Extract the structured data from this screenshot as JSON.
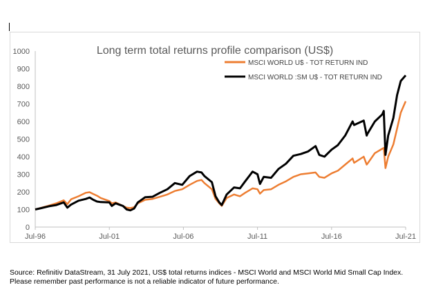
{
  "chart_data": {
    "type": "line",
    "title": "Long term total returns profile comparison (US$)",
    "xlabel": "",
    "ylabel": "",
    "ylim": [
      0,
      1000
    ],
    "yticks": [
      0,
      100,
      200,
      300,
      400,
      500,
      600,
      700,
      800,
      900,
      1000
    ],
    "xlim": [
      1996.58,
      2021.58
    ],
    "xticks": [
      {
        "x": 1996.58,
        "label": "Jul-96"
      },
      {
        "x": 2001.58,
        "label": "Jul-01"
      },
      {
        "x": 2006.58,
        "label": "Jul-06"
      },
      {
        "x": 2011.58,
        "label": "Jul-11"
      },
      {
        "x": 2016.58,
        "label": "Jul-16"
      },
      {
        "x": 2021.58,
        "label": "Jul-21"
      }
    ],
    "grid": false,
    "legend_position": "top-right",
    "series": [
      {
        "name": "MSCI WORLD U$ - TOT RETURN IND",
        "color": "#ed7d31",
        "points": [
          [
            1996.58,
            100
          ],
          [
            1997.0,
            110
          ],
          [
            1997.5,
            122
          ],
          [
            1998.0,
            135
          ],
          [
            1998.5,
            152
          ],
          [
            1998.75,
            130
          ],
          [
            1999.0,
            158
          ],
          [
            1999.5,
            175
          ],
          [
            2000.0,
            195
          ],
          [
            2000.25,
            198
          ],
          [
            2000.5,
            188
          ],
          [
            2000.75,
            178
          ],
          [
            2001.0,
            165
          ],
          [
            2001.58,
            148
          ],
          [
            2001.75,
            135
          ],
          [
            2002.0,
            140
          ],
          [
            2002.5,
            120
          ],
          [
            2002.75,
            110
          ],
          [
            2003.0,
            108
          ],
          [
            2003.25,
            112
          ],
          [
            2003.5,
            135
          ],
          [
            2004.0,
            155
          ],
          [
            2004.5,
            160
          ],
          [
            2005.0,
            172
          ],
          [
            2005.5,
            185
          ],
          [
            2006.0,
            205
          ],
          [
            2006.5,
            215
          ],
          [
            2007.0,
            240
          ],
          [
            2007.5,
            262
          ],
          [
            2007.8,
            268
          ],
          [
            2008.0,
            250
          ],
          [
            2008.5,
            215
          ],
          [
            2008.75,
            160
          ],
          [
            2009.0,
            135
          ],
          [
            2009.17,
            120
          ],
          [
            2009.5,
            165
          ],
          [
            2010.0,
            185
          ],
          [
            2010.4,
            175
          ],
          [
            2010.75,
            195
          ],
          [
            2011.25,
            220
          ],
          [
            2011.58,
            215
          ],
          [
            2011.75,
            190
          ],
          [
            2012.0,
            210
          ],
          [
            2012.5,
            215
          ],
          [
            2013.0,
            240
          ],
          [
            2013.5,
            260
          ],
          [
            2014.0,
            285
          ],
          [
            2014.5,
            300
          ],
          [
            2015.0,
            305
          ],
          [
            2015.5,
            310
          ],
          [
            2015.75,
            285
          ],
          [
            2016.1,
            280
          ],
          [
            2016.58,
            305
          ],
          [
            2017.0,
            320
          ],
          [
            2017.5,
            355
          ],
          [
            2018.0,
            390
          ],
          [
            2018.1,
            365
          ],
          [
            2018.75,
            400
          ],
          [
            2018.95,
            355
          ],
          [
            2019.0,
            360
          ],
          [
            2019.5,
            420
          ],
          [
            2020.0,
            445
          ],
          [
            2020.1,
            450
          ],
          [
            2020.22,
            335
          ],
          [
            2020.4,
            400
          ],
          [
            2020.75,
            470
          ],
          [
            2021.0,
            560
          ],
          [
            2021.25,
            650
          ],
          [
            2021.58,
            715
          ]
        ]
      },
      {
        "name": "MSCI WORLD :SM U$ - TOT RETURN IND",
        "color": "#000000",
        "points": [
          [
            1996.58,
            100
          ],
          [
            1997.0,
            108
          ],
          [
            1997.5,
            118
          ],
          [
            1998.0,
            125
          ],
          [
            1998.5,
            140
          ],
          [
            1998.75,
            110
          ],
          [
            1999.0,
            128
          ],
          [
            1999.5,
            150
          ],
          [
            2000.0,
            160
          ],
          [
            2000.25,
            168
          ],
          [
            2000.5,
            155
          ],
          [
            2000.75,
            145
          ],
          [
            2001.0,
            142
          ],
          [
            2001.58,
            140
          ],
          [
            2001.75,
            120
          ],
          [
            2002.0,
            135
          ],
          [
            2002.5,
            120
          ],
          [
            2002.75,
            100
          ],
          [
            2003.0,
            95
          ],
          [
            2003.25,
            105
          ],
          [
            2003.5,
            140
          ],
          [
            2004.0,
            170
          ],
          [
            2004.5,
            172
          ],
          [
            2005.0,
            195
          ],
          [
            2005.5,
            215
          ],
          [
            2006.0,
            250
          ],
          [
            2006.5,
            240
          ],
          [
            2007.0,
            290
          ],
          [
            2007.5,
            315
          ],
          [
            2007.8,
            310
          ],
          [
            2008.0,
            290
          ],
          [
            2008.5,
            255
          ],
          [
            2008.75,
            175
          ],
          [
            2009.0,
            140
          ],
          [
            2009.17,
            125
          ],
          [
            2009.5,
            185
          ],
          [
            2010.0,
            225
          ],
          [
            2010.4,
            220
          ],
          [
            2010.75,
            260
          ],
          [
            2011.25,
            315
          ],
          [
            2011.58,
            300
          ],
          [
            2011.75,
            245
          ],
          [
            2012.0,
            285
          ],
          [
            2012.5,
            280
          ],
          [
            2013.0,
            330
          ],
          [
            2013.5,
            360
          ],
          [
            2014.0,
            405
          ],
          [
            2014.5,
            415
          ],
          [
            2015.0,
            430
          ],
          [
            2015.5,
            460
          ],
          [
            2015.75,
            410
          ],
          [
            2016.1,
            400
          ],
          [
            2016.58,
            440
          ],
          [
            2017.0,
            465
          ],
          [
            2017.5,
            520
          ],
          [
            2018.0,
            600
          ],
          [
            2018.1,
            580
          ],
          [
            2018.75,
            605
          ],
          [
            2018.95,
            520
          ],
          [
            2019.0,
            530
          ],
          [
            2019.5,
            600
          ],
          [
            2020.0,
            640
          ],
          [
            2020.1,
            660
          ],
          [
            2020.22,
            410
          ],
          [
            2020.4,
            520
          ],
          [
            2020.75,
            620
          ],
          [
            2021.0,
            750
          ],
          [
            2021.25,
            830
          ],
          [
            2021.58,
            862
          ]
        ]
      }
    ]
  },
  "footnote": {
    "source": "Source: Refinitiv DataStream, 31 July 2021, US$ total returns indices - MSCI World and MSCI World Mid Small Cap Index.",
    "disclaimer": "Please remember past performance is not a reliable indicator of future performance."
  }
}
